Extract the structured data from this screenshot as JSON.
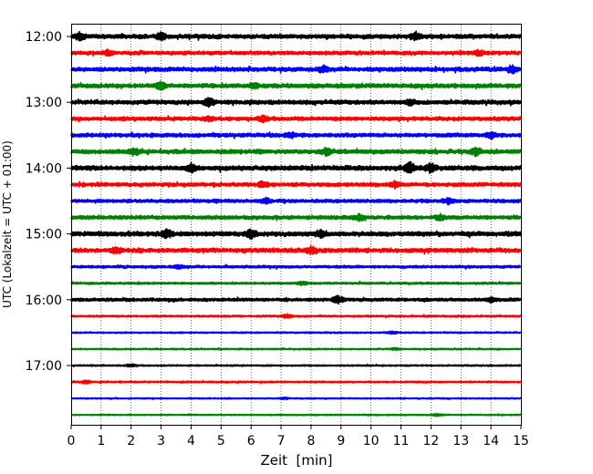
{
  "chart_data": {
    "type": "line",
    "title": "",
    "xlabel": "Zeit  [min]",
    "ylabel": "UTC (Lokalzeit = UTC + 01:00)",
    "xlim": [
      0,
      15
    ],
    "x_ticks": [
      "0",
      "1",
      "2",
      "3",
      "4",
      "5",
      "6",
      "7",
      "8",
      "9",
      "10",
      "11",
      "12",
      "13",
      "14",
      "15"
    ],
    "y_tick_labels": [
      "12:00",
      "13:00",
      "14:00",
      "15:00",
      "16:00",
      "17:00"
    ],
    "grid": "vertical dotted lines at each minute",
    "trace_interval_minutes": 15,
    "start_time": "12:00",
    "end_time": "17:45",
    "colors": [
      "#000000",
      "#ff0000",
      "#0000ff",
      "#008000"
    ],
    "series": [
      {
        "start": "12:00",
        "color": "#000000",
        "amplitude": 1.0,
        "events": [
          {
            "x": 0.3,
            "a": 2.0
          },
          {
            "x": 3.0,
            "a": 1.8
          },
          {
            "x": 11.5,
            "a": 2.0
          }
        ]
      },
      {
        "start": "12:15",
        "color": "#ff0000",
        "amplitude": 0.85,
        "events": [
          {
            "x": 1.2,
            "a": 1.6
          },
          {
            "x": 13.6,
            "a": 1.6
          }
        ]
      },
      {
        "start": "12:30",
        "color": "#0000ff",
        "amplitude": 1.0,
        "events": [
          {
            "x": 8.4,
            "a": 1.6
          },
          {
            "x": 14.7,
            "a": 1.8
          }
        ]
      },
      {
        "start": "12:45",
        "color": "#008000",
        "amplitude": 1.0,
        "events": [
          {
            "x": 3.0,
            "a": 1.8
          },
          {
            "x": 6.1,
            "a": 1.5
          }
        ]
      },
      {
        "start": "13:00",
        "color": "#000000",
        "amplitude": 1.0,
        "events": [
          {
            "x": 4.6,
            "a": 2.2
          },
          {
            "x": 11.3,
            "a": 1.5
          }
        ]
      },
      {
        "start": "13:15",
        "color": "#ff0000",
        "amplitude": 0.9,
        "events": [
          {
            "x": 4.6,
            "a": 1.6
          },
          {
            "x": 6.4,
            "a": 1.6
          }
        ]
      },
      {
        "start": "13:30",
        "color": "#0000ff",
        "amplitude": 0.9,
        "events": [
          {
            "x": 7.3,
            "a": 1.6
          },
          {
            "x": 14.0,
            "a": 1.8
          }
        ]
      },
      {
        "start": "13:45",
        "color": "#008000",
        "amplitude": 1.0,
        "events": [
          {
            "x": 2.1,
            "a": 1.8
          },
          {
            "x": 8.5,
            "a": 1.7
          },
          {
            "x": 13.5,
            "a": 1.8
          }
        ]
      },
      {
        "start": "14:00",
        "color": "#000000",
        "amplitude": 1.1,
        "events": [
          {
            "x": 4.0,
            "a": 1.8
          },
          {
            "x": 11.3,
            "a": 2.4
          },
          {
            "x": 12.0,
            "a": 2.0
          }
        ]
      },
      {
        "start": "14:15",
        "color": "#ff0000",
        "amplitude": 0.9,
        "events": [
          {
            "x": 6.4,
            "a": 1.6
          },
          {
            "x": 10.8,
            "a": 1.8
          }
        ]
      },
      {
        "start": "14:30",
        "color": "#0000ff",
        "amplitude": 0.8,
        "events": [
          {
            "x": 6.5,
            "a": 1.6
          },
          {
            "x": 12.6,
            "a": 1.8
          }
        ]
      },
      {
        "start": "14:45",
        "color": "#008000",
        "amplitude": 0.9,
        "events": [
          {
            "x": 9.6,
            "a": 1.7
          },
          {
            "x": 12.3,
            "a": 1.5
          }
        ]
      },
      {
        "start": "15:00",
        "color": "#000000",
        "amplitude": 1.1,
        "events": [
          {
            "x": 3.2,
            "a": 2.0
          },
          {
            "x": 6.0,
            "a": 1.8
          },
          {
            "x": 8.3,
            "a": 1.5
          }
        ]
      },
      {
        "start": "15:15",
        "color": "#ff0000",
        "amplitude": 1.0,
        "events": [
          {
            "x": 1.5,
            "a": 1.6
          },
          {
            "x": 8.0,
            "a": 1.8
          }
        ]
      },
      {
        "start": "15:30",
        "color": "#0000ff",
        "amplitude": 0.6,
        "events": [
          {
            "x": 3.6,
            "a": 1.7
          }
        ]
      },
      {
        "start": "15:45",
        "color": "#008000",
        "amplitude": 0.5,
        "events": [
          {
            "x": 7.7,
            "a": 1.8
          }
        ]
      },
      {
        "start": "16:00",
        "color": "#000000",
        "amplitude": 0.75,
        "events": [
          {
            "x": 8.9,
            "a": 2.4
          },
          {
            "x": 14.0,
            "a": 1.6
          }
        ]
      },
      {
        "start": "16:15",
        "color": "#ff0000",
        "amplitude": 0.45,
        "events": [
          {
            "x": 7.2,
            "a": 2.2
          }
        ]
      },
      {
        "start": "16:30",
        "color": "#0000ff",
        "amplitude": 0.35,
        "events": [
          {
            "x": 10.7,
            "a": 2.0
          }
        ]
      },
      {
        "start": "16:45",
        "color": "#008000",
        "amplitude": 0.35,
        "events": [
          {
            "x": 10.8,
            "a": 1.5
          }
        ]
      },
      {
        "start": "17:00",
        "color": "#000000",
        "amplitude": 0.35,
        "events": [
          {
            "x": 2.0,
            "a": 2.0
          }
        ]
      },
      {
        "start": "17:15",
        "color": "#ff0000",
        "amplitude": 0.4,
        "events": [
          {
            "x": 0.5,
            "a": 2.2
          }
        ]
      },
      {
        "start": "17:30",
        "color": "#0000ff",
        "amplitude": 0.3,
        "events": [
          {
            "x": 7.1,
            "a": 1.6
          }
        ]
      },
      {
        "start": "17:45",
        "color": "#008000",
        "amplitude": 0.3,
        "events": [
          {
            "x": 12.2,
            "a": 2.0
          }
        ]
      }
    ]
  }
}
